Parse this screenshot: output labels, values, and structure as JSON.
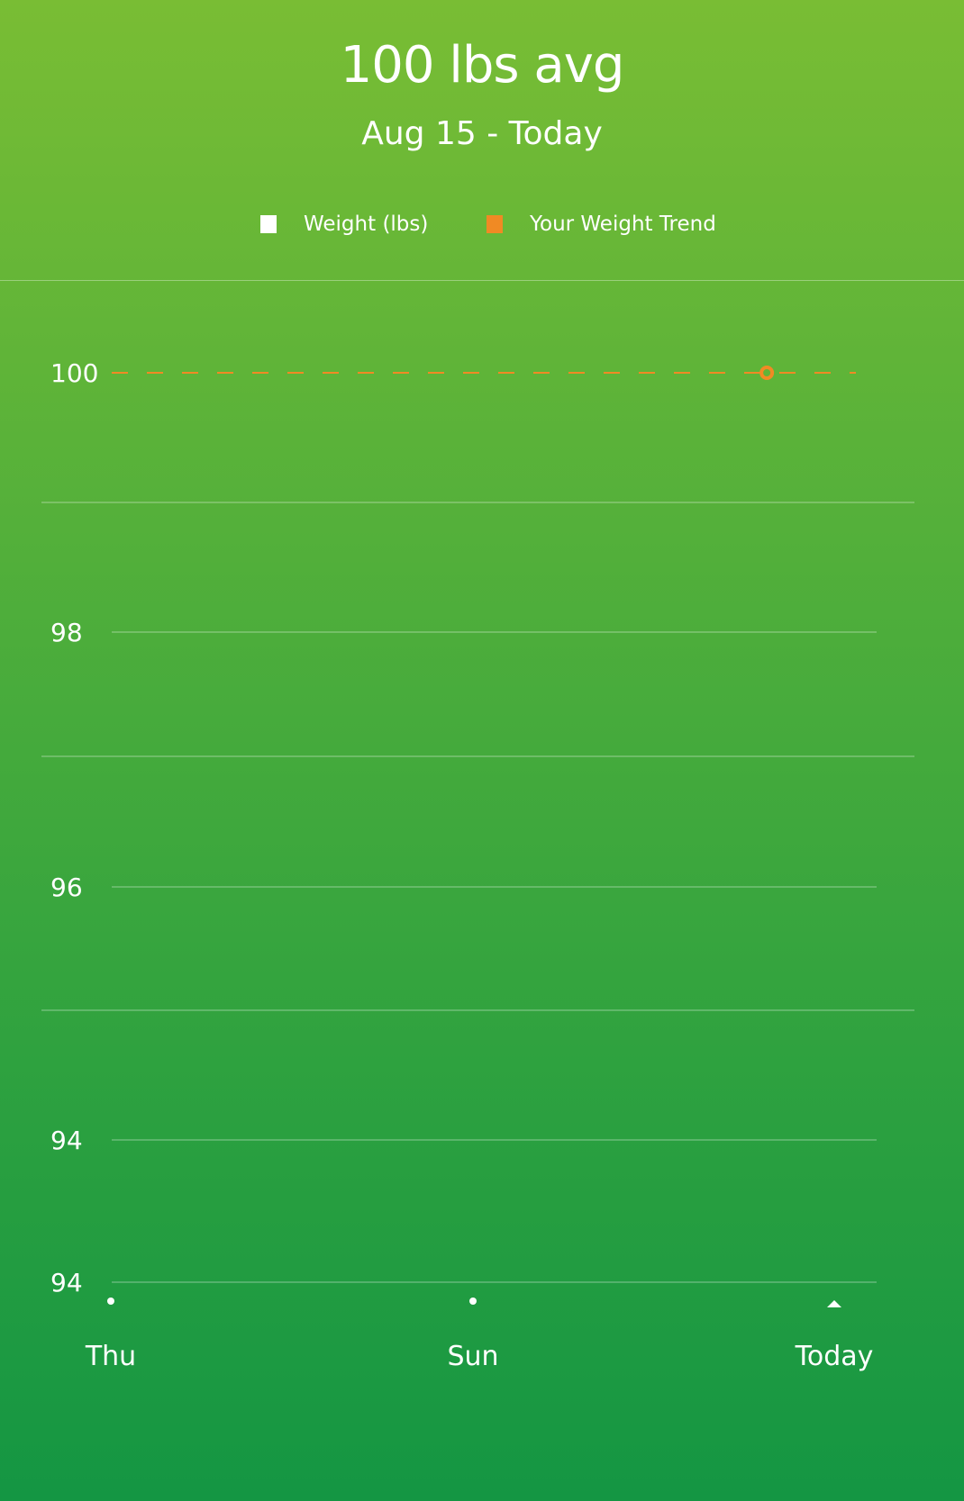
{
  "header": {
    "title": "100 lbs avg",
    "subtitle": "Aug 15 - Today"
  },
  "legend": [
    {
      "label": "Weight (lbs)",
      "color": "#ffffff"
    },
    {
      "label": "Your Weight Trend",
      "color": "#f08a24"
    }
  ],
  "colors": {
    "trend": "#f08a24",
    "grid": "rgba(255,255,255,0.45)",
    "marker": "#ffffff"
  },
  "chart_data": {
    "type": "line",
    "title": "100 lbs avg",
    "subtitle": "Aug 15 - Today",
    "y_ticks": [
      "100",
      "98",
      "96",
      "94",
      "94"
    ],
    "x_ticks": [
      "Thu",
      "Sun",
      "Today"
    ],
    "grid": true,
    "legend_placement": "top-center",
    "series": [
      {
        "name": "Weight (lbs)",
        "values": []
      },
      {
        "name": "Your Weight Trend",
        "value": 100,
        "point_fraction": 0.88
      }
    ]
  }
}
